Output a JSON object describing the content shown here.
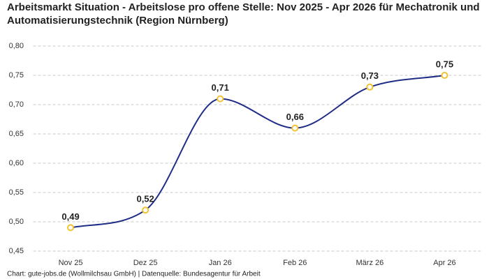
{
  "chart_data": {
    "type": "line",
    "title": "Arbeitsmarkt Situation - Arbeitslose pro offene Stelle: Nov 2025 - Apr 2026 für Mechatronik und Automatisierungstechnik (Region Nürnberg)",
    "categories": [
      "Nov 25",
      "Dez 25",
      "Jan 26",
      "Feb 26",
      "März 26",
      "Apr 26"
    ],
    "values": [
      0.49,
      0.52,
      0.71,
      0.66,
      0.73,
      0.75
    ],
    "value_labels": [
      "0,49",
      "0,52",
      "0,71",
      "0,66",
      "0,73",
      "0,75"
    ],
    "color": "#1f2d86",
    "marker_color": "#f2c230",
    "ylim": [
      0.45,
      0.8
    ],
    "yticks": [
      {
        "value": 0.45,
        "label": "0,45"
      },
      {
        "value": 0.5,
        "label": "0,50"
      },
      {
        "value": 0.55,
        "label": "0,55"
      },
      {
        "value": 0.6,
        "label": "0,60"
      },
      {
        "value": 0.65,
        "label": "0,65"
      },
      {
        "value": 0.7,
        "label": "0,70"
      },
      {
        "value": 0.75,
        "label": "0,75"
      },
      {
        "value": 0.8,
        "label": "0,80"
      }
    ],
    "grid": true,
    "source": "Chart: gute-jobs.de (Wollmilchsau GmbH) | Datenquelle: Bundesagentur für Arbeit"
  }
}
